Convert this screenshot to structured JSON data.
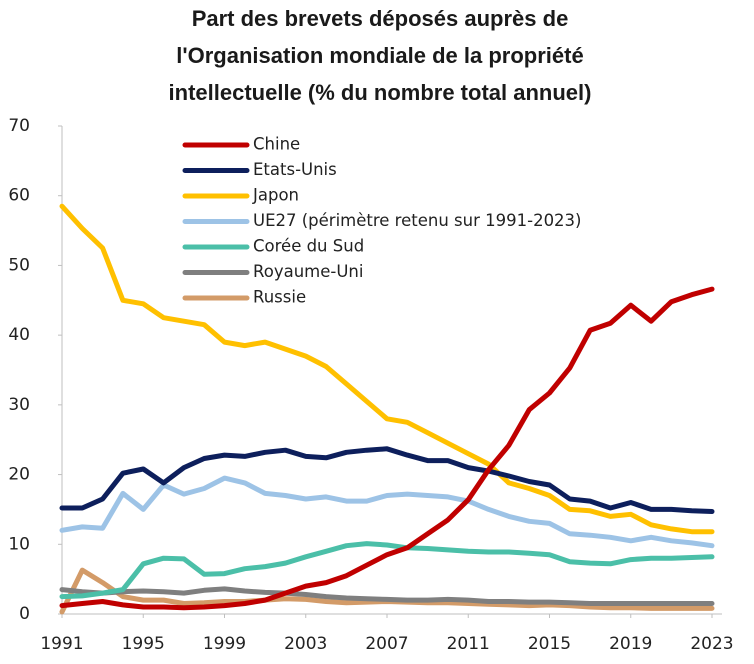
{
  "chart_data": {
    "type": "line",
    "title": [
      "Part des brevets déposés auprès de",
      "l'Organisation mondiale de la propriété",
      "intellectuelle (% du nombre total annuel)"
    ],
    "x": [
      1991,
      1992,
      1993,
      1994,
      1995,
      1996,
      1997,
      1998,
      1999,
      2000,
      2001,
      2002,
      2003,
      2004,
      2005,
      2006,
      2007,
      2008,
      2009,
      2010,
      2011,
      2012,
      2013,
      2014,
      2015,
      2016,
      2017,
      2018,
      2019,
      2020,
      2021,
      2022,
      2023
    ],
    "xlim": [
      1991,
      2023
    ],
    "xticks": [
      1991,
      1995,
      1999,
      2003,
      2007,
      2011,
      2015,
      2019,
      2023
    ],
    "ylim": [
      0,
      70
    ],
    "yticks": [
      0,
      10,
      20,
      30,
      40,
      50,
      60,
      70
    ],
    "grid": false,
    "legend": "top-left",
    "series": [
      {
        "name": "Chine",
        "color": "#c00000",
        "values": [
          1.2,
          1.5,
          1.8,
          1.3,
          1.0,
          1.0,
          0.9,
          1.0,
          1.2,
          1.5,
          2.0,
          3.0,
          4.0,
          4.5,
          5.5,
          7.0,
          8.5,
          9.5,
          11.5,
          13.5,
          16.4,
          20.7,
          24.2,
          29.3,
          31.7,
          35.3,
          40.7,
          41.7,
          44.3,
          42.0,
          44.8,
          45.8,
          46.6
        ]
      },
      {
        "name": "Etats-Unis",
        "color": "#0d1f5c",
        "values": [
          15.2,
          15.2,
          16.5,
          20.2,
          20.8,
          18.8,
          21.0,
          22.3,
          22.8,
          22.6,
          23.2,
          23.5,
          22.6,
          22.4,
          23.2,
          23.5,
          23.7,
          22.8,
          22.0,
          22.0,
          21.0,
          20.5,
          19.8,
          19.0,
          18.5,
          16.5,
          16.2,
          15.2,
          16.0,
          15.0,
          15.0,
          14.8,
          14.7
        ]
      },
      {
        "name": "Japon",
        "color": "#ffc000",
        "values": [
          58.5,
          55.3,
          52.5,
          45.0,
          44.5,
          42.5,
          42.0,
          41.5,
          39.0,
          38.5,
          39.0,
          38.0,
          37.0,
          35.5,
          33.0,
          30.5,
          28.0,
          27.5,
          26.0,
          24.5,
          23.0,
          21.5,
          18.8,
          18.0,
          17.0,
          15.0,
          14.8,
          14.0,
          14.3,
          12.8,
          12.2,
          11.8,
          11.8
        ]
      },
      {
        "name": "UE27 (périmètre retenu sur 1991-2023)",
        "color": "#9dc3e6",
        "values": [
          12.0,
          12.5,
          12.3,
          17.3,
          15.0,
          18.5,
          17.2,
          18.0,
          19.5,
          18.8,
          17.3,
          17.0,
          16.5,
          16.8,
          16.2,
          16.2,
          17.0,
          17.2,
          17.0,
          16.8,
          16.2,
          15.0,
          14.0,
          13.3,
          13.0,
          11.5,
          11.3,
          11.0,
          10.5,
          11.0,
          10.5,
          10.2,
          9.8
        ]
      },
      {
        "name": "Corée du Sud",
        "color": "#4bbfa8",
        "values": [
          2.5,
          2.6,
          3.0,
          3.5,
          7.2,
          8.0,
          7.9,
          5.7,
          5.8,
          6.5,
          6.8,
          7.3,
          8.2,
          9.0,
          9.8,
          10.1,
          9.9,
          9.5,
          9.4,
          9.2,
          9.0,
          8.9,
          8.9,
          8.7,
          8.5,
          7.5,
          7.3,
          7.2,
          7.8,
          8.0,
          8.0,
          8.1,
          8.2
        ]
      },
      {
        "name": "Royaume-Uni",
        "color": "#7f7f7f",
        "values": [
          3.5,
          3.2,
          3.0,
          3.2,
          3.3,
          3.2,
          3.0,
          3.4,
          3.6,
          3.3,
          3.1,
          3.0,
          2.8,
          2.5,
          2.3,
          2.2,
          2.1,
          2.0,
          2.0,
          2.1,
          2.0,
          1.8,
          1.8,
          1.7,
          1.7,
          1.6,
          1.5,
          1.5,
          1.5,
          1.5,
          1.5,
          1.5,
          1.5
        ]
      },
      {
        "name": "Russie",
        "color": "#d39b68",
        "values": [
          0.3,
          6.3,
          4.5,
          2.5,
          2.0,
          2.0,
          1.5,
          1.6,
          1.8,
          1.8,
          2.0,
          2.2,
          2.1,
          1.8,
          1.6,
          1.7,
          1.8,
          1.7,
          1.6,
          1.6,
          1.5,
          1.4,
          1.3,
          1.2,
          1.3,
          1.2,
          1.0,
          0.9,
          0.9,
          0.8,
          0.8,
          0.8,
          0.8
        ]
      }
    ]
  }
}
